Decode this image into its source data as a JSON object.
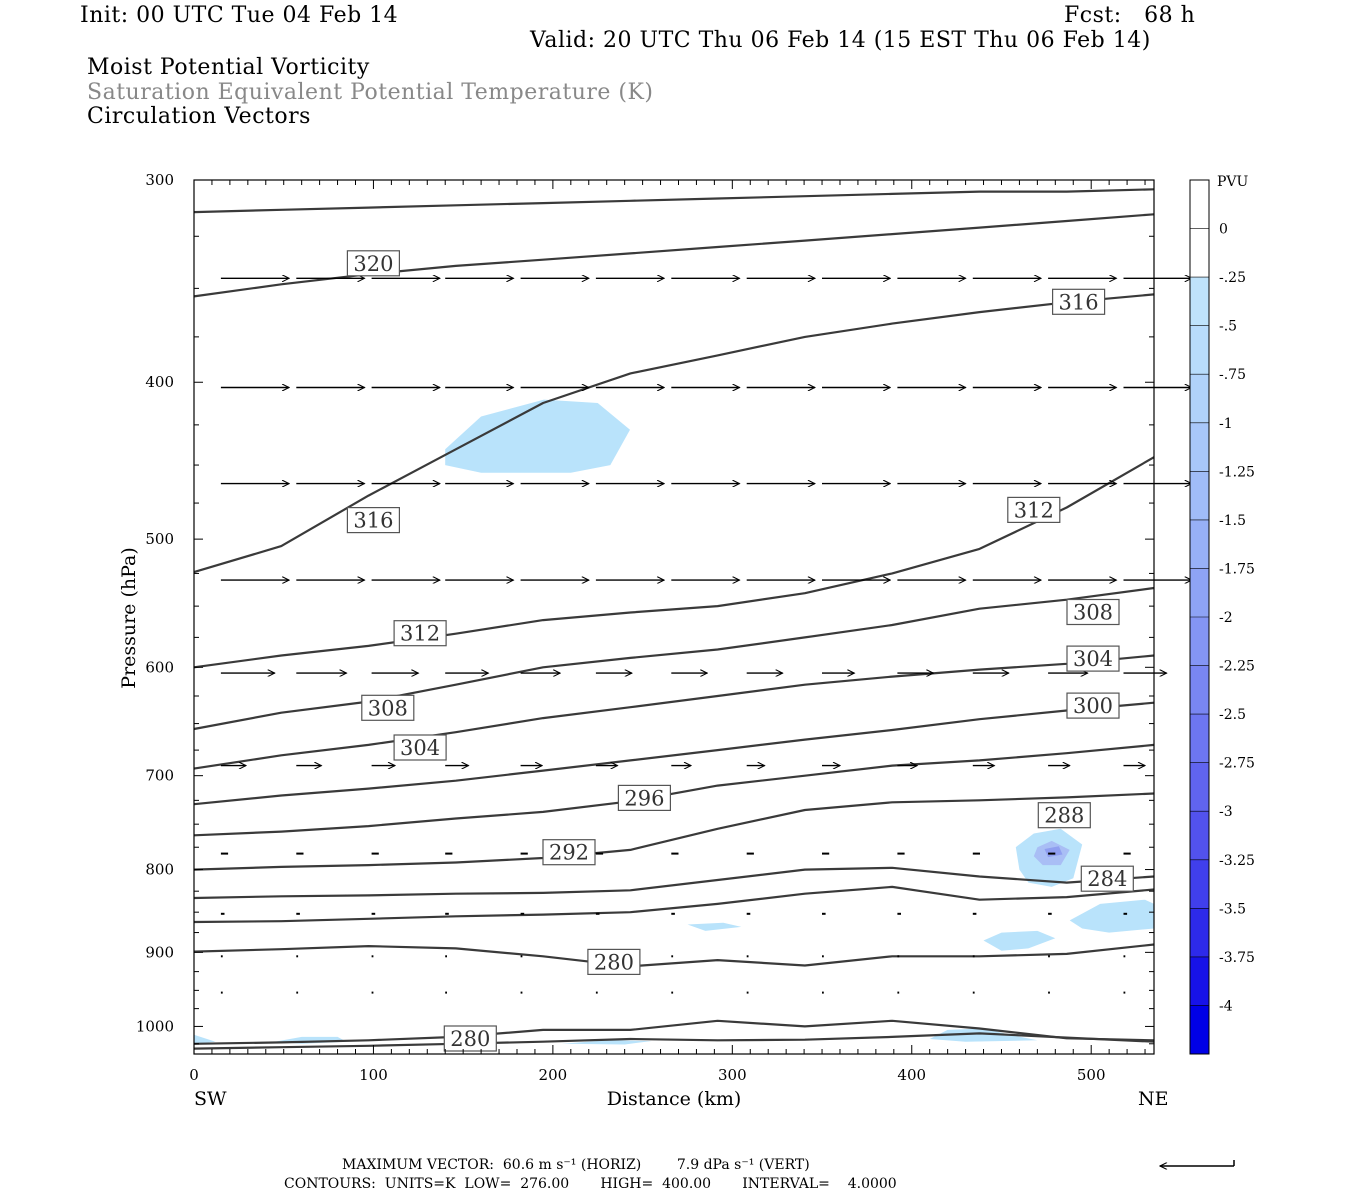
{
  "header": {
    "init": "Init: 00 UTC Tue 04 Feb 14",
    "fcst": "Fcst:   68 h",
    "valid": "Valid: 20 UTC Thu 06 Feb 14 (15 EST Thu 06 Feb 14)",
    "fields": [
      "Moist Potential Vorticity",
      "Saturation Equivalent Potential Temperature (K)",
      "Circulation Vectors"
    ],
    "field_colors": [
      "#000000",
      "#888888",
      "#000000"
    ]
  },
  "footer": {
    "max_vector": "MAXIMUM VECTOR:  60.6 m s⁻¹ (HORIZ)        7.9 dPa s⁻¹ (VERT)",
    "contours": "CONTOURS:  UNITS=K  LOW=  276.00       HIGH=  400.00       INTERVAL=    4.0000"
  },
  "colors": {
    "contour": "#3a3a3a",
    "shade_light": "#b9e3fb",
    "shade_mid": "#a9bef5",
    "shade_dark": "#8f9ef0"
  },
  "chart_data": {
    "type": "contour",
    "xlabel": "Distance (km)",
    "ylabel": "Pressure (hPa)",
    "xlim": [
      0,
      535
    ],
    "ylim": [
      1040,
      300
    ],
    "y_scale": "log-pressure",
    "x_ticks": [
      0,
      100,
      200,
      300,
      400,
      500
    ],
    "y_ticks": [
      300,
      400,
      500,
      600,
      700,
      800,
      900,
      1000
    ],
    "x_end_labels": {
      "left": "SW",
      "right": "NE"
    },
    "colorbar": {
      "units": "PVU",
      "labels": [
        "0",
        "-.25",
        "-.5",
        "-.75",
        "-1",
        "-1.25",
        "-1.5",
        "-1.75",
        "-2",
        "-2.25",
        "-2.5",
        "-2.75",
        "-3",
        "-3.25",
        "-3.5",
        "-3.75",
        "-4"
      ],
      "colors": [
        "#ffffff",
        "#ffffff",
        "#bfe3fb",
        "#b8dcfb",
        "#b0d2fa",
        "#a8c7f9",
        "#a0bcf8",
        "#97b0f7",
        "#8ea3f5",
        "#8495f4",
        "#7986f2",
        "#6d76f1",
        "#6064ef",
        "#5252ed",
        "#403fec",
        "#2d2aea",
        "#1712e8",
        "#0000e6"
      ]
    },
    "contour_labels": [
      {
        "value": "320",
        "x": 100,
        "p": 338
      },
      {
        "value": "316",
        "x": 493,
        "p": 357
      },
      {
        "value": "316",
        "x": 100,
        "p": 487
      },
      {
        "value": "312",
        "x": 468,
        "p": 480
      },
      {
        "value": "312",
        "x": 126,
        "p": 572
      },
      {
        "value": "308",
        "x": 501,
        "p": 555
      },
      {
        "value": "308",
        "x": 108,
        "p": 636
      },
      {
        "value": "304",
        "x": 501,
        "p": 593
      },
      {
        "value": "304",
        "x": 126,
        "p": 673
      },
      {
        "value": "300",
        "x": 501,
        "p": 634
      },
      {
        "value": "296",
        "x": 251,
        "p": 723
      },
      {
        "value": "292",
        "x": 209,
        "p": 781
      },
      {
        "value": "288",
        "x": 485,
        "p": 741
      },
      {
        "value": "284",
        "x": 509,
        "p": 811
      },
      {
        "value": "280",
        "x": 234,
        "p": 913
      },
      {
        "value": "280",
        "x": 154,
        "p": 1018
      }
    ],
    "contours": [
      {
        "p": [
          314,
          313,
          312,
          311,
          310,
          309,
          308,
          307,
          306,
          305,
          305,
          304
        ]
      },
      {
        "p": [
          354,
          348,
          343,
          339,
          336,
          333,
          330,
          327,
          324,
          321,
          318,
          315
        ]
      },
      {
        "p": [
          524,
          505,
          470,
          440,
          412,
          395,
          385,
          375,
          368,
          362,
          357,
          353
        ]
      },
      {
        "p": [
          600,
          590,
          582,
          572,
          561,
          555,
          550,
          540,
          525,
          507,
          478,
          445
        ]
      },
      {
        "p": [
          655,
          640,
          630,
          615,
          600,
          592,
          585,
          575,
          565,
          552,
          545,
          536
        ]
      },
      {
        "p": [
          693,
          680,
          670,
          658,
          645,
          635,
          625,
          615,
          608,
          602,
          597,
          590
        ]
      },
      {
        "p": [
          729,
          720,
          713,
          705,
          695,
          685,
          675,
          665,
          656,
          646,
          638,
          631
        ]
      },
      {
        "p": [
          762,
          758,
          752,
          744,
          737,
          726,
          710,
          700,
          690,
          685,
          678,
          670
        ]
      },
      {
        "p": [
          800,
          797,
          795,
          792,
          787,
          778,
          755,
          735,
          727,
          725,
          722,
          718
        ]
      },
      {
        "p": [
          833,
          831,
          830,
          828,
          827,
          824,
          812,
          800,
          798,
          808,
          815,
          808
        ]
      },
      {
        "p": [
          862,
          861,
          858,
          855,
          853,
          850,
          840,
          828,
          820,
          835,
          832,
          823
        ]
      },
      {
        "p": [
          899,
          896,
          892,
          895,
          905,
          918,
          910,
          917,
          905,
          905,
          902,
          890
        ]
      },
      {
        "p": [
          1025,
          1023,
          1020,
          1015,
          1005,
          1005,
          992,
          1000,
          992,
          1003,
          1017,
          1020
        ]
      },
      {
        "p": [
          1032,
          1030,
          1028,
          1025,
          1022,
          1018,
          1020,
          1019,
          1015,
          1010,
          1016,
          1022
        ]
      }
    ],
    "vectors": {
      "levels": [
        345,
        403,
        462,
        530,
        605,
        690,
        782,
        852,
        905,
        953
      ],
      "x": [
        15,
        57,
        99,
        140,
        182,
        224,
        266,
        308,
        350,
        392,
        434,
        476,
        518
      ],
      "lengths_km": [
        [
          38,
          38,
          38,
          38,
          38,
          38,
          38,
          38,
          38,
          38,
          38,
          38,
          38
        ],
        [
          38,
          38,
          38,
          38,
          38,
          38,
          38,
          38,
          38,
          38,
          38,
          38,
          38
        ],
        [
          38,
          38,
          38,
          38,
          38,
          38,
          38,
          38,
          38,
          38,
          38,
          38,
          38
        ],
        [
          38,
          38,
          38,
          38,
          38,
          38,
          38,
          38,
          38,
          38,
          38,
          38,
          38
        ],
        [
          30,
          28,
          26,
          24,
          22,
          20,
          20,
          20,
          18,
          20,
          20,
          22,
          24
        ],
        [
          14,
          14,
          13,
          13,
          12,
          12,
          11,
          10,
          10,
          11,
          12,
          12,
          12
        ],
        [
          4,
          4,
          4,
          4,
          4,
          4,
          4,
          4,
          4,
          4,
          4,
          4,
          4
        ],
        [
          2,
          2,
          2,
          2,
          2,
          2,
          2,
          2,
          2,
          2,
          2,
          2,
          2
        ],
        [
          1,
          1,
          1,
          1,
          1,
          1,
          1,
          1,
          1,
          1,
          1,
          1,
          1
        ],
        [
          1,
          1,
          1,
          1,
          1,
          1,
          1,
          1,
          1,
          1,
          1,
          1,
          1
        ]
      ]
    },
    "mpv_patches": [
      {
        "value": "-0.5",
        "points": [
          [
            140,
            440
          ],
          [
            160,
            420
          ],
          [
            195,
            410
          ],
          [
            225,
            412
          ],
          [
            243,
            428
          ],
          [
            232,
            450
          ],
          [
            210,
            455
          ],
          [
            160,
            455
          ],
          [
            140,
            450
          ]
        ]
      },
      {
        "value": "-0.5",
        "points": [
          [
            458,
            775
          ],
          [
            468,
            760
          ],
          [
            483,
            755
          ],
          [
            495,
            772
          ],
          [
            490,
            810
          ],
          [
            478,
            820
          ],
          [
            465,
            815
          ],
          [
            460,
            800
          ]
        ]
      },
      {
        "value": "-1",
        "points": [
          [
            470,
            775
          ],
          [
            478,
            768
          ],
          [
            488,
            778
          ],
          [
            483,
            795
          ],
          [
            473,
            795
          ],
          [
            468,
            785
          ]
        ]
      },
      {
        "value": "-1.5",
        "points": [
          [
            474,
            777
          ],
          [
            482,
            774
          ],
          [
            484,
            783
          ],
          [
            476,
            786
          ]
        ]
      },
      {
        "value": "-0.5",
        "points": [
          [
            488,
            860
          ],
          [
            505,
            840
          ],
          [
            530,
            835
          ],
          [
            535,
            840
          ],
          [
            535,
            870
          ],
          [
            510,
            875
          ],
          [
            495,
            870
          ]
        ]
      },
      {
        "value": "-0.5",
        "points": [
          [
            440,
            885
          ],
          [
            450,
            875
          ],
          [
            470,
            873
          ],
          [
            480,
            882
          ],
          [
            465,
            895
          ],
          [
            450,
            898
          ]
        ]
      },
      {
        "value": "-0.5",
        "points": [
          [
            275,
            865
          ],
          [
            295,
            863
          ],
          [
            305,
            868
          ],
          [
            285,
            873
          ]
        ]
      },
      {
        "value": "-0.5",
        "points": [
          [
            410,
            1018
          ],
          [
            420,
            1005
          ],
          [
            440,
            1003
          ],
          [
            455,
            1012
          ],
          [
            470,
            1020
          ],
          [
            430,
            1022
          ]
        ]
      },
      {
        "value": "-0.5",
        "points": [
          [
            45,
            1022
          ],
          [
            60,
            1015
          ],
          [
            80,
            1015
          ],
          [
            85,
            1022
          ],
          [
            60,
            1025
          ]
        ]
      },
      {
        "value": "-0.5",
        "points": [
          [
            205,
            1025
          ],
          [
            230,
            1020
          ],
          [
            255,
            1021
          ],
          [
            240,
            1026
          ]
        ]
      },
      {
        "value": "-0.5",
        "points": [
          [
            0,
            1025
          ],
          [
            0,
            1012
          ],
          [
            12,
            1022
          ]
        ]
      }
    ]
  }
}
